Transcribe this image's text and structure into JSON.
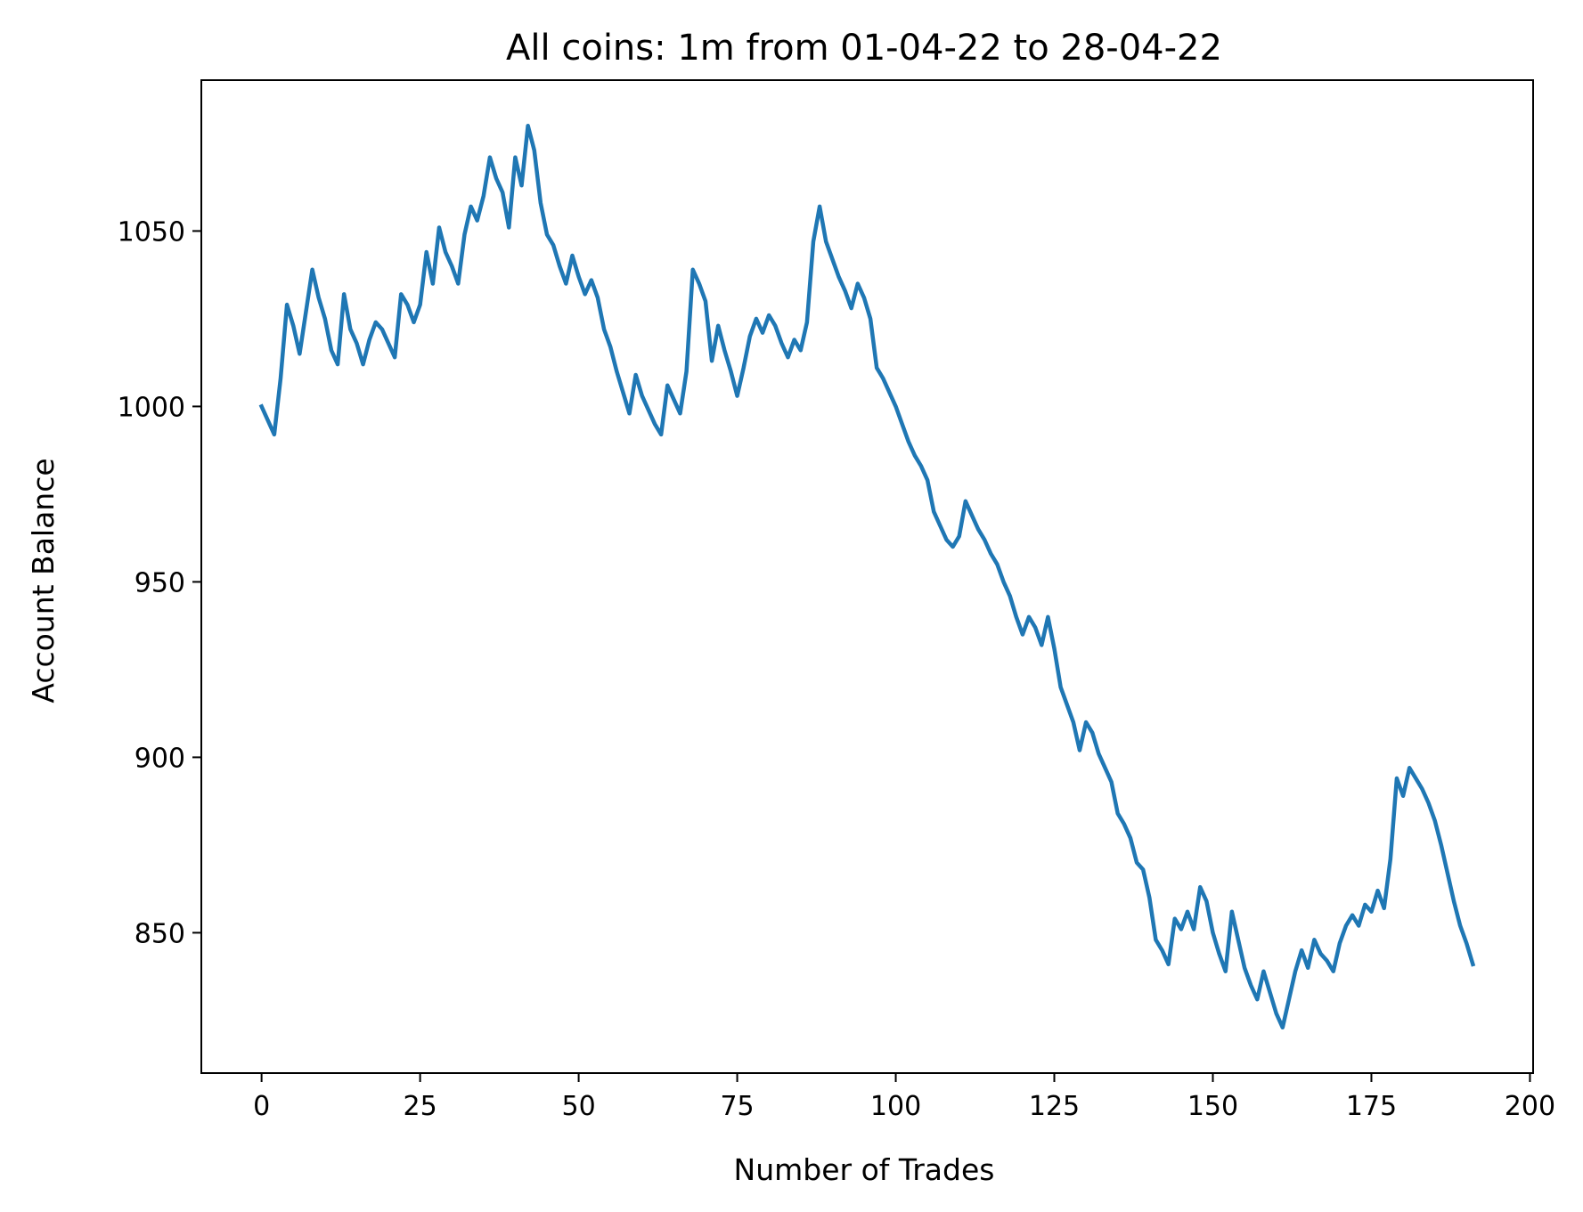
{
  "chart_data": {
    "type": "line",
    "title": "All coins: 1m from 01-04-22 to 28-04-22",
    "xlabel": "Number of Trades",
    "ylabel": "Account Balance",
    "xlim": [
      -9.5,
      200.5
    ],
    "ylim": [
      810,
      1093
    ],
    "xticks": [
      0,
      25,
      50,
      75,
      100,
      125,
      150,
      175,
      200
    ],
    "yticks": [
      850,
      900,
      950,
      1000,
      1050
    ],
    "grid": false,
    "legend": "none",
    "series": [
      {
        "color": "#1f77b4",
        "x": [
          0,
          1,
          2,
          3,
          4,
          5,
          6,
          7,
          8,
          9,
          10,
          11,
          12,
          13,
          14,
          15,
          16,
          17,
          18,
          19,
          20,
          21,
          22,
          23,
          24,
          25,
          26,
          27,
          28,
          29,
          30,
          31,
          32,
          33,
          34,
          35,
          36,
          37,
          38,
          39,
          40,
          41,
          42,
          43,
          44,
          45,
          46,
          47,
          48,
          49,
          50,
          51,
          52,
          53,
          54,
          55,
          56,
          57,
          58,
          59,
          60,
          61,
          62,
          63,
          64,
          65,
          66,
          67,
          68,
          69,
          70,
          71,
          72,
          73,
          74,
          75,
          76,
          77,
          78,
          79,
          80,
          81,
          82,
          83,
          84,
          85,
          86,
          87,
          88,
          89,
          90,
          91,
          92,
          93,
          94,
          95,
          96,
          97,
          98,
          99,
          100,
          101,
          102,
          103,
          104,
          105,
          106,
          107,
          108,
          109,
          110,
          111,
          112,
          113,
          114,
          115,
          116,
          117,
          118,
          119,
          120,
          121,
          122,
          123,
          124,
          125,
          126,
          127,
          128,
          129,
          130,
          131,
          132,
          133,
          134,
          135,
          136,
          137,
          138,
          139,
          140,
          141,
          142,
          143,
          144,
          145,
          146,
          147,
          148,
          149,
          150,
          151,
          152,
          153,
          154,
          155,
          156,
          157,
          158,
          159,
          160,
          161,
          162,
          163,
          164,
          165,
          166,
          167,
          168,
          169,
          170,
          171,
          172,
          173,
          174,
          175,
          176,
          177,
          178,
          179,
          180,
          181,
          182,
          183,
          184,
          185,
          186,
          187,
          188,
          189,
          190,
          191
        ],
        "y": [
          1000,
          996,
          992,
          1008,
          1029,
          1023,
          1015,
          1027,
          1039,
          1031,
          1025,
          1016,
          1012,
          1032,
          1022,
          1018,
          1012,
          1019,
          1024,
          1022,
          1018,
          1014,
          1032,
          1029,
          1024,
          1029,
          1044,
          1035,
          1051,
          1044,
          1040,
          1035,
          1049,
          1057,
          1053,
          1060,
          1071,
          1065,
          1061,
          1051,
          1071,
          1063,
          1080,
          1073,
          1058,
          1049,
          1046,
          1040,
          1035,
          1043,
          1037,
          1032,
          1036,
          1031,
          1022,
          1017,
          1010,
          1004,
          998,
          1009,
          1003,
          999,
          995,
          992,
          1006,
          1002,
          998,
          1010,
          1039,
          1035,
          1030,
          1013,
          1023,
          1016,
          1010,
          1003,
          1011,
          1020,
          1025,
          1021,
          1026,
          1023,
          1018,
          1014,
          1019,
          1016,
          1024,
          1047,
          1057,
          1047,
          1042,
          1037,
          1033,
          1028,
          1035,
          1031,
          1025,
          1011,
          1008,
          1004,
          1000,
          995,
          990,
          986,
          983,
          979,
          970,
          966,
          962,
          960,
          963,
          973,
          969,
          965,
          962,
          958,
          955,
          950,
          946,
          940,
          935,
          940,
          937,
          932,
          940,
          931,
          920,
          915,
          910,
          902,
          910,
          907,
          901,
          897,
          893,
          884,
          881,
          877,
          870,
          868,
          860,
          848,
          845,
          841,
          854,
          851,
          856,
          851,
          863,
          859,
          850,
          844,
          839,
          856,
          848,
          840,
          835,
          831,
          839,
          833,
          827,
          823,
          831,
          839,
          845,
          840,
          848,
          844,
          842,
          839,
          847,
          852,
          855,
          852,
          858,
          856,
          862,
          857,
          871,
          894,
          889,
          897,
          894,
          891,
          887,
          882,
          875,
          867,
          859,
          852,
          847,
          841
        ]
      }
    ]
  }
}
